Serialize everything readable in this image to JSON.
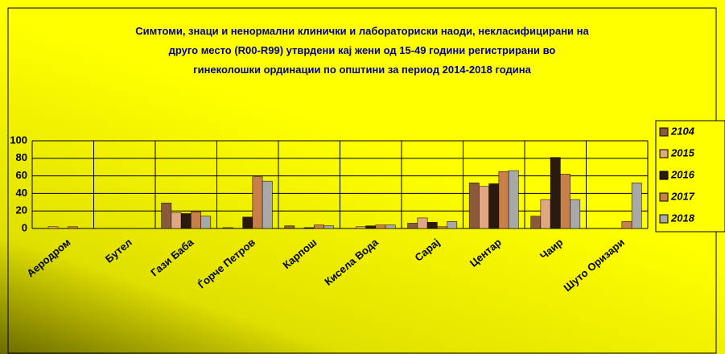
{
  "chart_data": {
    "type": "bar",
    "title": "Симтоми, знаци и ненормални клинички и лабораториски наоди, некласифицирани на друго место (R00-R99) утврдени кај жени од 15-49 години регистрирани во гинеколошки ординации по општини за период 2014-2018 година",
    "categories": [
      "Аеродром",
      "Бутел",
      "Гази Баба",
      "Ѓорче Петров",
      "Карпош",
      "Кисела Вода",
      "Сарај",
      "Центар",
      "Чаир",
      "Шуто Оризари"
    ],
    "series": [
      {
        "name": "2104",
        "color": "#8b5a3c",
        "values": [
          0,
          0,
          29,
          1,
          3,
          0,
          6,
          52,
          14,
          0
        ]
      },
      {
        "name": "2015",
        "color": "#e0a882",
        "values": [
          2,
          0,
          18,
          0,
          0,
          2,
          12,
          48,
          33,
          0
        ]
      },
      {
        "name": "2016",
        "color": "#2b1a10",
        "values": [
          0,
          0,
          17,
          13,
          1,
          3,
          7,
          51,
          81,
          0
        ]
      },
      {
        "name": "2017",
        "color": "#c8804a",
        "values": [
          2,
          0,
          19,
          59,
          4,
          4,
          2,
          65,
          62,
          8
        ]
      },
      {
        "name": "2018",
        "color": "#a8a8a8",
        "values": [
          0,
          0,
          14,
          54,
          3,
          4,
          8,
          66,
          33,
          52
        ]
      }
    ],
    "ylim": [
      0,
      100
    ],
    "yticks": [
      0,
      20,
      40,
      60,
      80,
      100
    ],
    "grid": true,
    "legend": "right"
  }
}
